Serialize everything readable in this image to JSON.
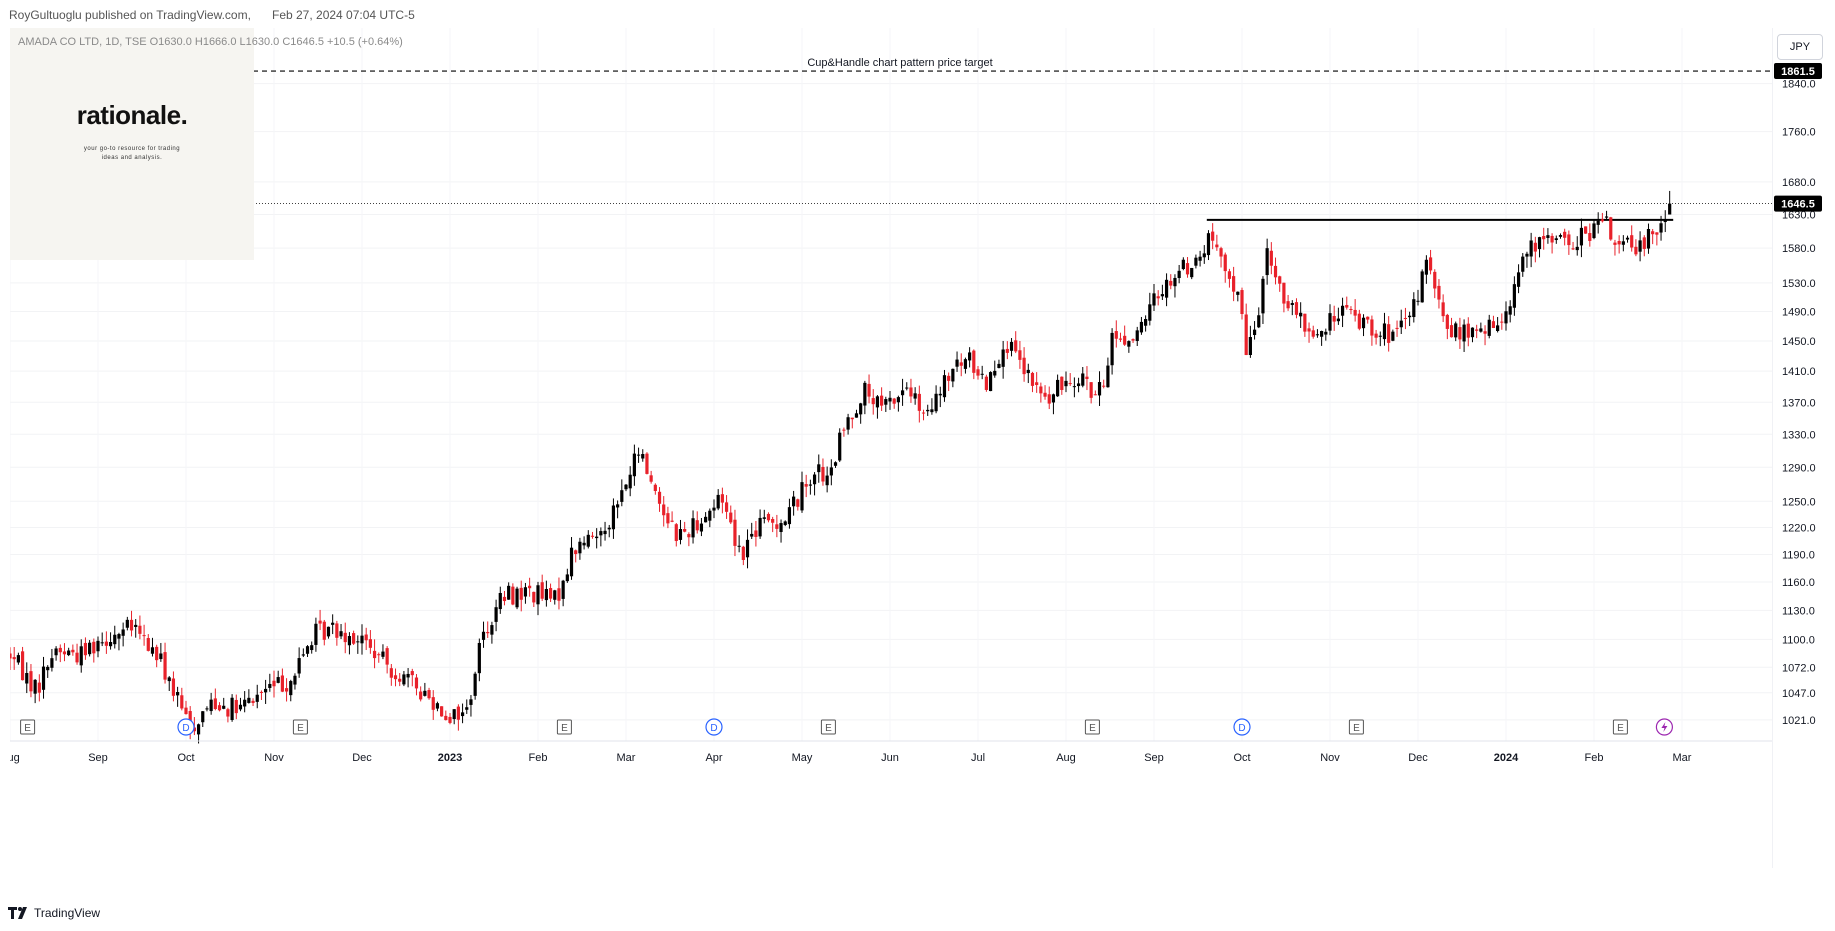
{
  "header": {
    "publisher": "RoyGultuoglu published on TradingView.com,",
    "published_at": "Feb 27, 2024 07:04 UTC-5"
  },
  "symbol": {
    "text": "AMADA CO LTD, 1D, TSE  O1630.0  H1666.0  L1630.0  C1646.5  +10.5 (+0.64%)"
  },
  "currency": "JPY",
  "logo": {
    "word": "rationale.",
    "tagline_1": "your go-to resource for trading",
    "tagline_2": "ideas and analysis."
  },
  "annotations": {
    "target_label": "Cup&Handle chart pattern price target",
    "target_price": "1861.5",
    "last_price": "1646.5"
  },
  "footer": {
    "brand": "TradingView"
  },
  "colors": {
    "up": "#000000",
    "down": "#e8212a",
    "event_icon_earnings": "#555555",
    "event_icon_dividend": "#2962ff",
    "event_icon_split": "#9c27b0"
  },
  "chart_data": {
    "type": "candlestick",
    "title": "AMADA CO LTD, 1D, TSE",
    "y_scale": "log",
    "ylim": [
      1005,
      1930
    ],
    "y_ticks": [
      1021.0,
      1047.0,
      1072.0,
      1100.0,
      1130.0,
      1160.0,
      1190.0,
      1220.0,
      1250.0,
      1290.0,
      1330.0,
      1370.0,
      1410.0,
      1450.0,
      1490.0,
      1530.0,
      1580.0,
      1630.0,
      1680.0,
      1760.0,
      1840.0
    ],
    "x_labels": [
      {
        "label": "Aug",
        "month_index": 0
      },
      {
        "label": "Sep",
        "month_index": 1
      },
      {
        "label": "Oct",
        "month_index": 2
      },
      {
        "label": "Nov",
        "month_index": 3
      },
      {
        "label": "Dec",
        "month_index": 4
      },
      {
        "label": "2023",
        "month_index": 5,
        "bold": true
      },
      {
        "label": "Feb",
        "month_index": 6
      },
      {
        "label": "Mar",
        "month_index": 7
      },
      {
        "label": "Apr",
        "month_index": 8
      },
      {
        "label": "May",
        "month_index": 9
      },
      {
        "label": "Jun",
        "month_index": 10
      },
      {
        "label": "Jul",
        "month_index": 11
      },
      {
        "label": "Aug",
        "month_index": 12
      },
      {
        "label": "Sep",
        "month_index": 13
      },
      {
        "label": "Oct",
        "month_index": 14
      },
      {
        "label": "Nov",
        "month_index": 15
      },
      {
        "label": "Dec",
        "month_index": 16
      },
      {
        "label": "2024",
        "month_index": 17,
        "bold": true
      },
      {
        "label": "Feb",
        "month_index": 18
      },
      {
        "label": "Mar",
        "month_index": 19
      }
    ],
    "ohlc_anchors_month_close": [
      [
        0.0,
        1085
      ],
      [
        0.3,
        1050
      ],
      [
        0.5,
        1090
      ],
      [
        0.8,
        1085
      ],
      [
        1.0,
        1100
      ],
      [
        1.4,
        1112
      ],
      [
        1.7,
        1080
      ],
      [
        1.9,
        1040
      ],
      [
        2.05,
        1012
      ],
      [
        2.3,
        1040
      ],
      [
        2.6,
        1030
      ],
      [
        2.9,
        1050
      ],
      [
        3.2,
        1060
      ],
      [
        3.45,
        1105
      ],
      [
        3.7,
        1112
      ],
      [
        4.0,
        1100
      ],
      [
        4.2,
        1080
      ],
      [
        4.5,
        1060
      ],
      [
        4.8,
        1040
      ],
      [
        5.0,
        1025
      ],
      [
        5.2,
        1030
      ],
      [
        5.35,
        1100
      ],
      [
        5.6,
        1145
      ],
      [
        5.9,
        1150
      ],
      [
        6.2,
        1140
      ],
      [
        6.4,
        1195
      ],
      [
        6.7,
        1215
      ],
      [
        6.9,
        1245
      ],
      [
        7.15,
        1310
      ],
      [
        7.4,
        1245
      ],
      [
        7.6,
        1210
      ],
      [
        7.9,
        1235
      ],
      [
        8.1,
        1255
      ],
      [
        8.3,
        1190
      ],
      [
        8.5,
        1222
      ],
      [
        8.8,
        1230
      ],
      [
        9.0,
        1262
      ],
      [
        9.15,
        1290
      ],
      [
        9.3,
        1270
      ],
      [
        9.45,
        1330
      ],
      [
        9.7,
        1385
      ],
      [
        9.9,
        1360
      ],
      [
        10.2,
        1390
      ],
      [
        10.4,
        1345
      ],
      [
        10.7,
        1410
      ],
      [
        10.9,
        1425
      ],
      [
        11.1,
        1395
      ],
      [
        11.3,
        1450
      ],
      [
        11.6,
        1395
      ],
      [
        11.8,
        1370
      ],
      [
        12.0,
        1400
      ],
      [
        12.2,
        1408
      ],
      [
        12.3,
        1375
      ],
      [
        12.45,
        1390
      ],
      [
        12.5,
        1460
      ],
      [
        12.7,
        1450
      ],
      [
        12.9,
        1470
      ],
      [
        13.0,
        1510
      ],
      [
        13.3,
        1550
      ],
      [
        13.5,
        1560
      ],
      [
        13.65,
        1600
      ],
      [
        13.8,
        1540
      ],
      [
        13.95,
        1525
      ],
      [
        14.05,
        1430
      ],
      [
        14.15,
        1470
      ],
      [
        14.3,
        1575
      ],
      [
        14.5,
        1500
      ],
      [
        14.7,
        1470
      ],
      [
        14.9,
        1455
      ],
      [
        15.1,
        1495
      ],
      [
        15.3,
        1480
      ],
      [
        15.5,
        1470
      ],
      [
        15.7,
        1455
      ],
      [
        15.9,
        1475
      ],
      [
        16.1,
        1560
      ],
      [
        16.3,
        1470
      ],
      [
        16.5,
        1460
      ],
      [
        16.7,
        1460
      ],
      [
        16.9,
        1470
      ],
      [
        17.05,
        1510
      ],
      [
        17.2,
        1570
      ],
      [
        17.4,
        1585
      ],
      [
        17.55,
        1605
      ],
      [
        17.7,
        1580
      ],
      [
        17.9,
        1600
      ],
      [
        18.1,
        1620
      ],
      [
        18.3,
        1585
      ],
      [
        18.5,
        1575
      ],
      [
        18.65,
        1610
      ],
      [
        18.8,
        1620
      ],
      [
        18.86,
        1646.5
      ]
    ],
    "last_candle": {
      "open": 1630.0,
      "high": 1666.0,
      "low": 1630.0,
      "close": 1646.5,
      "change": 10.5,
      "change_pct": 0.64
    },
    "horizontal_lines": [
      {
        "kind": "resistance",
        "value": 1622,
        "from_month": 13.6,
        "to_month": 18.9,
        "style": "solid"
      },
      {
        "kind": "target",
        "value": 1861.5,
        "style": "dashed",
        "label": "Cup&Handle chart pattern price target"
      },
      {
        "kind": "last_price",
        "value": 1646.5,
        "style": "dotted"
      }
    ],
    "events": [
      {
        "type": "E",
        "month": 0.2
      },
      {
        "type": "E",
        "month": 3.3
      },
      {
        "type": "E",
        "month": 6.3
      },
      {
        "type": "E",
        "month": 9.3
      },
      {
        "type": "E",
        "month": 12.3
      },
      {
        "type": "E",
        "month": 15.3
      },
      {
        "type": "E",
        "month": 18.3
      },
      {
        "type": "D",
        "month": 2.0
      },
      {
        "type": "D",
        "month": 8.0
      },
      {
        "type": "D",
        "month": 14.0
      },
      {
        "type": "S",
        "month": 18.8
      }
    ]
  }
}
